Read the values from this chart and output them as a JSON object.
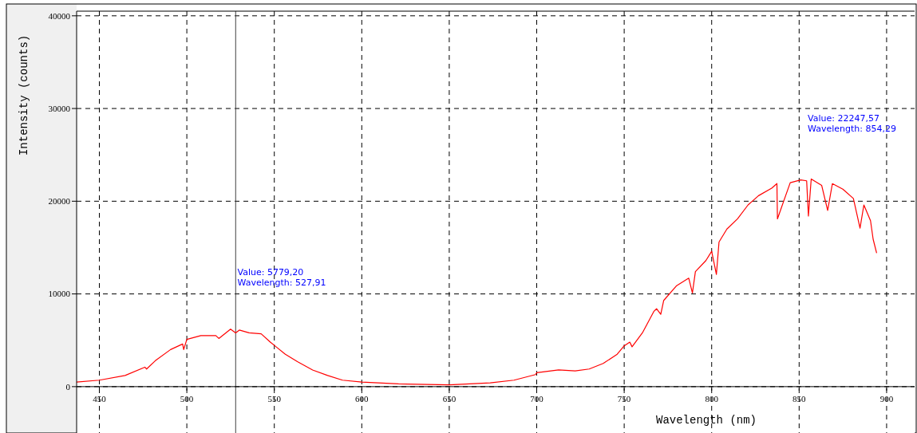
{
  "chart_data": {
    "type": "line",
    "xlabel": "Wavelength (nm)",
    "ylabel": "Intensity (counts)",
    "xlim": [
      437,
      916
    ],
    "xticks": [
      450,
      500,
      550,
      600,
      650,
      700,
      750,
      800,
      850,
      900
    ],
    "ylim": [
      -5000,
      40500
    ],
    "yticks": [
      0,
      10000,
      20000,
      30000,
      40000
    ],
    "grid": true,
    "marker": "none",
    "line_style": "solid",
    "ref_lines": [
      {
        "axis": "x",
        "value": 527.91,
        "color": "#404040",
        "line_style": "solid"
      }
    ],
    "annotations": [
      {
        "text": "Value: 5779,20\nWavelength: 527,91",
        "x": 528,
        "y": 12000
      },
      "Value: 22247,57\nWavelength: 854,29"
    ],
    "series": [
      {
        "color": "#ff0000",
        "x": [
          437,
          450,
          464.7,
          476,
          477,
          482,
          490.7,
          497.6,
          498.2,
          500,
          508,
          516.6,
          518.3,
          525,
          527.91,
          530,
          535.6,
          542.5,
          547.7,
          551,
          556.3,
          563.2,
          571.9,
          580.5,
          589,
          600,
          621,
          650,
          673.4,
          687,
          699.3,
          700,
          712.5,
          722,
          730,
          738,
          746,
          750,
          753.2,
          754.5,
          760.4,
          766.9,
          768.5,
          770.9,
          772.6,
          780,
          786.9,
          789,
          790.7,
          796.7,
          800,
          802.7,
          804.2,
          808.7,
          814.8,
          820.8,
          826.8,
          834.3,
          837.3,
          837.6,
          844.9,
          850.9,
          854.29,
          855.3,
          856.9,
          862.9,
          866.3,
          869,
          875,
          881,
          884.8,
          887,
          890.8,
          892.3,
          894.3
        ],
        "values": [
          500,
          700,
          1200,
          2100,
          1900,
          2800,
          4000,
          4600,
          4000,
          5100,
          5500,
          5500,
          5200,
          6200,
          5800,
          6100,
          5800,
          5700,
          4800,
          4300,
          3500,
          2700,
          1800,
          1200,
          700,
          500,
          300,
          200,
          400,
          700,
          1300,
          1500,
          1800,
          1700,
          1900,
          2500,
          3500,
          4400,
          4800,
          4300,
          5800,
          8100,
          8400,
          7800,
          9300,
          10900,
          11700,
          10100,
          12400,
          13600,
          14600,
          12100,
          15600,
          17000,
          18100,
          19600,
          20600,
          21400,
          21900,
          18100,
          22000,
          22300,
          22200,
          18400,
          22400,
          21700,
          19000,
          21900,
          21300,
          20300,
          17100,
          19600,
          17900,
          15900,
          14400
        ]
      }
    ]
  }
}
